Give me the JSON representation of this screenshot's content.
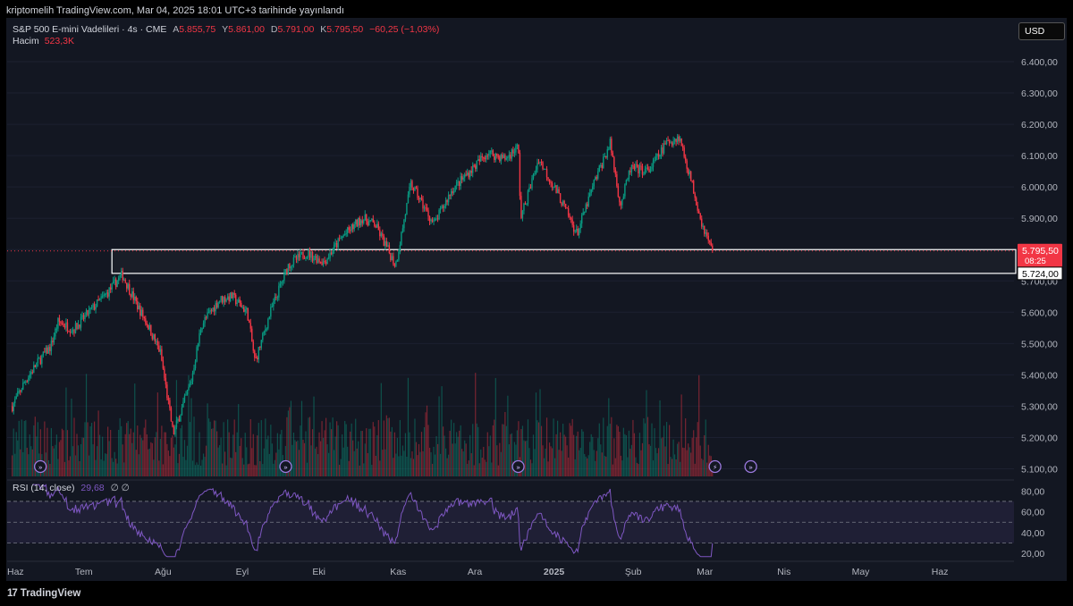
{
  "publish_line": "kriptomelih TradingView.com, Mar 04, 2025 18:01 UTC+3 tarihinde yayınlandı",
  "legend": {
    "symbol": "S&P 500 E-mini Vadelileri · 4s · CME",
    "open_label": "A",
    "open": "5.855,75",
    "high_label": "Y",
    "high": "5.861,00",
    "low_label": "D",
    "low": "5.791,00",
    "close_label": "K",
    "close": "5.795,50",
    "change": "−60,25 (−1,03%)",
    "volume_label": "Hacim",
    "volume": "523,3K"
  },
  "currency_button": "USD",
  "rsi_legend": {
    "label": "RSI (14, close)",
    "value": "29,68",
    "extra": "∅  ∅"
  },
  "brand": "TradingView",
  "colors": {
    "up": "#089981",
    "down": "#f23645",
    "rsi": "#7e57c2",
    "background": "#131722",
    "box": "#ffffff"
  },
  "icons": [
    "fast-forward-icon",
    "fast-forward-icon",
    "fast-forward-icon",
    "lightning-icon",
    "fast-forward-icon"
  ],
  "chart_data": [
    {
      "type": "candlestick",
      "title": "S&P 500 E-mini Vadelileri · 4s · CME",
      "x_ticks": [
        "Haz",
        "Tem",
        "Ağu",
        "Eyl",
        "Eki",
        "Kas",
        "Ara",
        "2025",
        "Şub",
        "Mar",
        "Nis",
        "May",
        "Haz"
      ],
      "y_ticks": [
        "6.400,00",
        "6.300,00",
        "6.200,00",
        "6.100,00",
        "6.000,00",
        "5.900,00",
        "5.800,00",
        "5.700,00",
        "5.600,00",
        "5.500,00",
        "5.400,00",
        "5.300,00",
        "5.200,00",
        "5.100,00"
      ],
      "ylim": [
        5070,
        6440
      ],
      "price_path": [
        [
          "2024-06-03",
          5300
        ],
        [
          "2024-06-08",
          5380
        ],
        [
          "2024-06-13",
          5440
        ],
        [
          "2024-06-18",
          5490
        ],
        [
          "2024-06-21",
          5570
        ],
        [
          "2024-06-27",
          5545
        ],
        [
          "2024-07-03",
          5600
        ],
        [
          "2024-07-10",
          5660
        ],
        [
          "2024-07-16",
          5720
        ],
        [
          "2024-07-22",
          5620
        ],
        [
          "2024-07-26",
          5560
        ],
        [
          "2024-07-31",
          5470
        ],
        [
          "2024-08-05",
          5210
        ],
        [
          "2024-08-12",
          5380
        ],
        [
          "2024-08-16",
          5560
        ],
        [
          "2024-08-23",
          5640
        ],
        [
          "2024-08-28",
          5650
        ],
        [
          "2024-09-03",
          5600
        ],
        [
          "2024-09-06",
          5440
        ],
        [
          "2024-09-12",
          5600
        ],
        [
          "2024-09-19",
          5750
        ],
        [
          "2024-09-26",
          5790
        ],
        [
          "2024-10-03",
          5760
        ],
        [
          "2024-10-10",
          5840
        ],
        [
          "2024-10-18",
          5900
        ],
        [
          "2024-10-23",
          5880
        ],
        [
          "2024-10-31",
          5750
        ],
        [
          "2024-11-06",
          6010
        ],
        [
          "2024-11-15",
          5880
        ],
        [
          "2024-11-22",
          5990
        ],
        [
          "2024-11-29",
          6050
        ],
        [
          "2024-12-06",
          6110
        ],
        [
          "2024-12-13",
          6090
        ],
        [
          "2024-12-18",
          6130
        ],
        [
          "2024-12-19",
          5900
        ],
        [
          "2024-12-26",
          6090
        ],
        [
          "2025-01-03",
          5970
        ],
        [
          "2025-01-10",
          5850
        ],
        [
          "2025-01-17",
          6020
        ],
        [
          "2025-01-23",
          6140
        ],
        [
          "2025-01-27",
          5940
        ],
        [
          "2025-01-31",
          6060
        ],
        [
          "2025-02-07",
          6050
        ],
        [
          "2025-02-14",
          6140
        ],
        [
          "2025-02-19",
          6160
        ],
        [
          "2025-02-24",
          6010
        ],
        [
          "2025-02-28",
          5880
        ],
        [
          "2025-03-04",
          5795.5
        ]
      ],
      "last_price": "5.795,50",
      "countdown": "08:25",
      "support_zone": {
        "from": 5724,
        "to": 5800,
        "label": "5.724,00"
      }
    },
    {
      "type": "line",
      "title": "RSI (14, close)",
      "y_ticks": [
        "80,00",
        "60,00",
        "40,00",
        "20,00"
      ],
      "ylim": [
        15,
        88
      ],
      "bands": [
        30,
        50,
        70
      ],
      "last_value": 29.68
    }
  ]
}
